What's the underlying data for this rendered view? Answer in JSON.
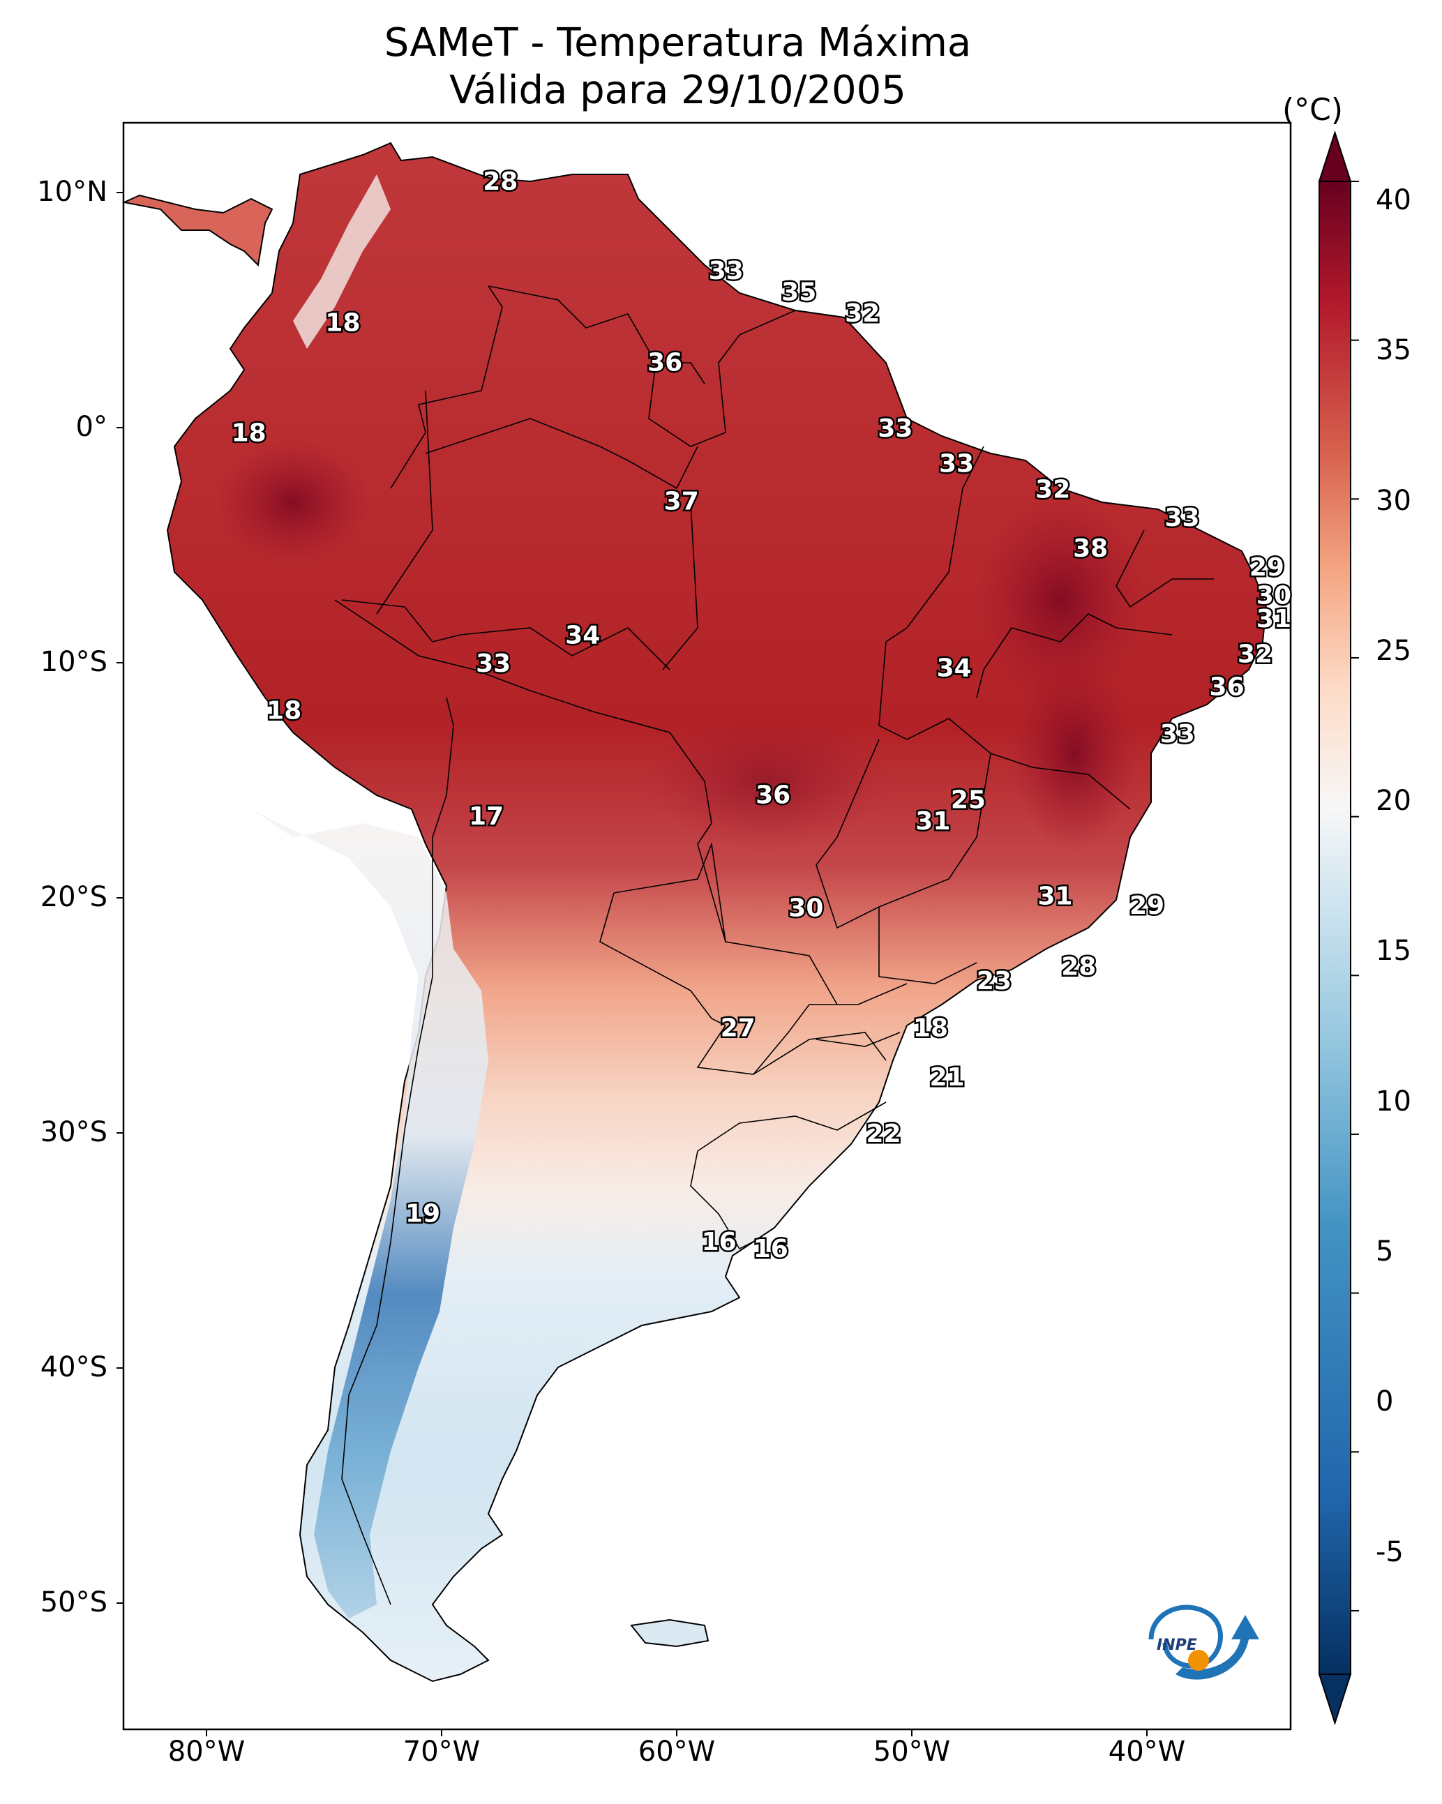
{
  "title": {
    "line1": "SAMeT - Temperatura Máxima",
    "line2": "Válida para 29/10/2005"
  },
  "axes": {
    "lat_labels": [
      "10°N",
      "0°",
      "10°S",
      "20°S",
      "30°S",
      "40°S",
      "50°S"
    ],
    "lon_labels": [
      "80°W",
      "70°W",
      "60°W",
      "50°W",
      "40°W"
    ]
  },
  "colorbar": {
    "unit": "(°C)",
    "ticks": [
      "40",
      "35",
      "30",
      "25",
      "20",
      "15",
      "10",
      "5",
      "0",
      "-5"
    ],
    "range": [
      -7,
      40
    ],
    "colors": {
      "max": "#67001f",
      "high": "#b2182b",
      "warm": "#f4a582",
      "neutral": "#f7f7f7",
      "cool": "#92c5de",
      "cold": "#2166ac",
      "min": "#053061"
    }
  },
  "logo": {
    "text": "INPE",
    "icon": "inpe-logo-icon"
  },
  "map_labels": [
    {
      "value": "28",
      "lon": -67.5,
      "lat": 10.5
    },
    {
      "value": "18",
      "lon": -74.2,
      "lat": 4.5
    },
    {
      "value": "33",
      "lon": -57.9,
      "lat": 6.7
    },
    {
      "value": "35",
      "lon": -54.8,
      "lat": 5.8
    },
    {
      "value": "32",
      "lon": -52.1,
      "lat": 4.9
    },
    {
      "value": "36",
      "lon": -60.5,
      "lat": 2.8
    },
    {
      "value": "18",
      "lon": -78.2,
      "lat": -0.2
    },
    {
      "value": "33",
      "lon": -50.7,
      "lat": 0.0
    },
    {
      "value": "33",
      "lon": -48.1,
      "lat": -1.5
    },
    {
      "value": "37",
      "lon": -59.8,
      "lat": -3.1
    },
    {
      "value": "32",
      "lon": -44.0,
      "lat": -2.6
    },
    {
      "value": "33",
      "lon": -38.5,
      "lat": -3.8
    },
    {
      "value": "38",
      "lon": -42.4,
      "lat": -5.1
    },
    {
      "value": "29",
      "lon": -34.9,
      "lat": -5.9
    },
    {
      "value": "30",
      "lon": -34.6,
      "lat": -7.1
    },
    {
      "value": "31",
      "lon": -34.6,
      "lat": -8.1
    },
    {
      "value": "34",
      "lon": -64.0,
      "lat": -8.8
    },
    {
      "value": "33",
      "lon": -67.8,
      "lat": -10.0
    },
    {
      "value": "32",
      "lon": -35.4,
      "lat": -9.6
    },
    {
      "value": "34",
      "lon": -48.2,
      "lat": -10.2
    },
    {
      "value": "36",
      "lon": -36.6,
      "lat": -11.0
    },
    {
      "value": "18",
      "lon": -76.7,
      "lat": -12.0
    },
    {
      "value": "33",
      "lon": -38.7,
      "lat": -13.0
    },
    {
      "value": "36",
      "lon": -55.9,
      "lat": -15.6
    },
    {
      "value": "25",
      "lon": -47.6,
      "lat": -15.8
    },
    {
      "value": "31",
      "lon": -49.1,
      "lat": -16.7
    },
    {
      "value": "17",
      "lon": -68.1,
      "lat": -16.5
    },
    {
      "value": "30",
      "lon": -54.5,
      "lat": -20.4
    },
    {
      "value": "31",
      "lon": -43.9,
      "lat": -19.9
    },
    {
      "value": "29",
      "lon": -40.0,
      "lat": -20.3
    },
    {
      "value": "28",
      "lon": -42.9,
      "lat": -22.9
    },
    {
      "value": "23",
      "lon": -46.5,
      "lat": -23.5
    },
    {
      "value": "27",
      "lon": -57.4,
      "lat": -25.5
    },
    {
      "value": "18",
      "lon": -49.2,
      "lat": -25.5
    },
    {
      "value": "21",
      "lon": -48.5,
      "lat": -27.6
    },
    {
      "value": "22",
      "lon": -51.2,
      "lat": -30.0
    },
    {
      "value": "19",
      "lon": -70.8,
      "lat": -33.4
    },
    {
      "value": "16",
      "lon": -58.2,
      "lat": -34.6
    },
    {
      "value": "16",
      "lon": -56.0,
      "lat": -34.9
    }
  ]
}
